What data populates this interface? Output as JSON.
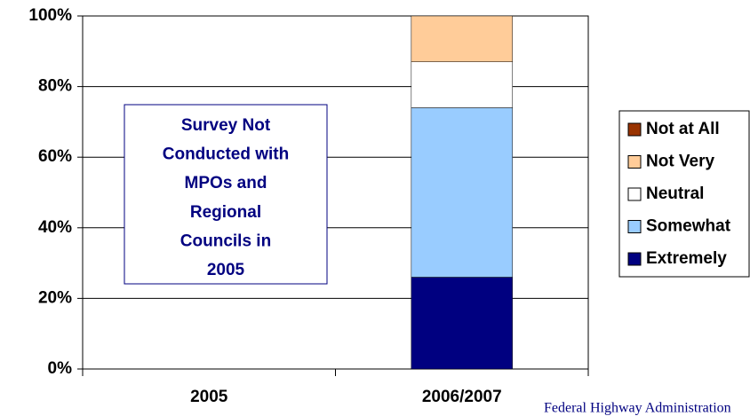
{
  "chart_data": {
    "type": "stacked_bar",
    "categories": [
      "2005",
      "2006/2007"
    ],
    "series": [
      {
        "name": "Extremely",
        "color": "#000080",
        "values": [
          null,
          26
        ]
      },
      {
        "name": "Somewhat",
        "color": "#99ccff",
        "values": [
          null,
          48
        ]
      },
      {
        "name": "Neutral",
        "color": "#ffffff",
        "values": [
          null,
          13
        ]
      },
      {
        "name": "Not Very",
        "color": "#ffcc99",
        "values": [
          null,
          13
        ]
      },
      {
        "name": "Not at All",
        "color": "#993300",
        "values": [
          null,
          0
        ]
      }
    ],
    "ylim": [
      0,
      100
    ],
    "yticks": [
      {
        "value": 0,
        "label": "0%"
      },
      {
        "value": 20,
        "label": "20%"
      },
      {
        "value": 40,
        "label": "40%"
      },
      {
        "value": 60,
        "label": "60%"
      },
      {
        "value": 80,
        "label": "80%"
      },
      {
        "value": 100,
        "label": "100%"
      }
    ],
    "grid": true,
    "legend": "right",
    "annotation_lines": [
      "Survey Not",
      "Conducted with",
      "MPOs and",
      "Regional",
      "Councils in",
      "2005"
    ],
    "source": "Federal Highway Administration"
  }
}
